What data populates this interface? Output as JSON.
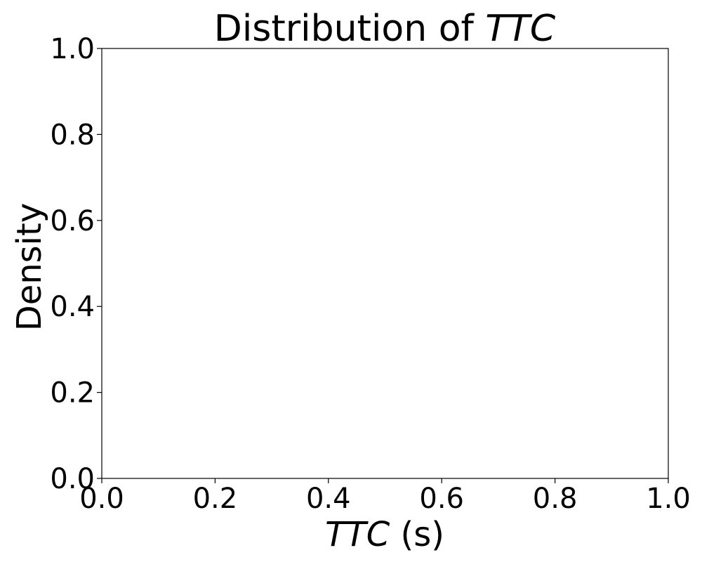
{
  "chart_data": {
    "type": "area",
    "title": {
      "prefix": "Distribution of ",
      "var": "TTC"
    },
    "xlabel": {
      "var": "TTC",
      "suffix": " (s)"
    },
    "ylabel": "Density",
    "xlim": [
      0.0,
      1.0
    ],
    "ylim": [
      0.0,
      1.0
    ],
    "x_ticks": [
      "0.0",
      "0.2",
      "0.4",
      "0.6",
      "0.8",
      "1.0"
    ],
    "y_ticks": [
      "0.0",
      "0.2",
      "0.4",
      "0.6",
      "0.8",
      "1.0"
    ],
    "series": [],
    "grid": false,
    "legend": "none",
    "colors": {
      "axes": "#000000",
      "background": "#ffffff"
    }
  }
}
